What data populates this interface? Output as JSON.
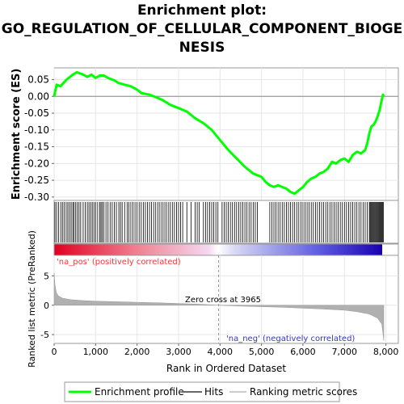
{
  "chart_data": {
    "type": "line",
    "title_lines": [
      "Enrichment plot:",
      "GO_REGULATION_OF_CELLULAR_COMPONENT_BIOGE",
      "NESIS"
    ],
    "es_panel": {
      "ylabel": "Enrichment score (ES)",
      "ylim": [
        -0.31,
        0.085
      ],
      "yticks": [
        0.05,
        0.0,
        -0.05,
        -0.1,
        -0.15,
        -0.2,
        -0.25,
        -0.3
      ],
      "ytick_labels": [
        "0.05",
        "0.00",
        "-0.05",
        "-0.10",
        "-0.15",
        "-0.20",
        "-0.25",
        "-0.30"
      ],
      "series": [
        {
          "name": "Enrichment profile",
          "color": "#00ff00",
          "points": [
            [
              0,
              0.0
            ],
            [
              60,
              0.035
            ],
            [
              150,
              0.03
            ],
            [
              300,
              0.05
            ],
            [
              450,
              0.065
            ],
            [
              550,
              0.072
            ],
            [
              700,
              0.065
            ],
            [
              800,
              0.058
            ],
            [
              900,
              0.065
            ],
            [
              1000,
              0.055
            ],
            [
              1100,
              0.062
            ],
            [
              1200,
              0.062
            ],
            [
              1300,
              0.055
            ],
            [
              1450,
              0.048
            ],
            [
              1550,
              0.04
            ],
            [
              1700,
              0.035
            ],
            [
              1850,
              0.03
            ],
            [
              2000,
              0.02
            ],
            [
              2100,
              0.01
            ],
            [
              2300,
              0.005
            ],
            [
              2450,
              -0.002
            ],
            [
              2600,
              -0.01
            ],
            [
              2800,
              -0.025
            ],
            [
              3000,
              -0.035
            ],
            [
              3200,
              -0.045
            ],
            [
              3400,
              -0.065
            ],
            [
              3600,
              -0.08
            ],
            [
              3800,
              -0.1
            ],
            [
              4000,
              -0.13
            ],
            [
              4200,
              -0.16
            ],
            [
              4400,
              -0.185
            ],
            [
              4600,
              -0.21
            ],
            [
              4800,
              -0.23
            ],
            [
              5000,
              -0.24
            ],
            [
              5100,
              -0.255
            ],
            [
              5200,
              -0.265
            ],
            [
              5300,
              -0.27
            ],
            [
              5400,
              -0.265
            ],
            [
              5500,
              -0.27
            ],
            [
              5600,
              -0.275
            ],
            [
              5700,
              -0.285
            ],
            [
              5800,
              -0.29
            ],
            [
              5900,
              -0.28
            ],
            [
              6000,
              -0.27
            ],
            [
              6100,
              -0.255
            ],
            [
              6200,
              -0.245
            ],
            [
              6300,
              -0.24
            ],
            [
              6400,
              -0.23
            ],
            [
              6500,
              -0.225
            ],
            [
              6600,
              -0.215
            ],
            [
              6700,
              -0.195
            ],
            [
              6800,
              -0.2
            ],
            [
              6900,
              -0.19
            ],
            [
              7000,
              -0.185
            ],
            [
              7100,
              -0.195
            ],
            [
              7200,
              -0.175
            ],
            [
              7300,
              -0.165
            ],
            [
              7400,
              -0.17
            ],
            [
              7500,
              -0.16
            ],
            [
              7550,
              -0.14
            ],
            [
              7600,
              -0.11
            ],
            [
              7650,
              -0.09
            ],
            [
              7700,
              -0.085
            ],
            [
              7750,
              -0.075
            ],
            [
              7800,
              -0.06
            ],
            [
              7850,
              -0.04
            ],
            [
              7900,
              -0.01
            ],
            [
              7930,
              0.005
            ],
            [
              7950,
              0.0
            ]
          ]
        }
      ]
    },
    "hits": {
      "name": "Hits",
      "positions": [
        20,
        60,
        110,
        160,
        200,
        240,
        290,
        330,
        370,
        410,
        450,
        480,
        520,
        560,
        600,
        640,
        700,
        750,
        800,
        840,
        880,
        920,
        960,
        1000,
        1050,
        1100,
        1130,
        1160,
        1200,
        1250,
        1300,
        1350,
        1400,
        1450,
        1500,
        1560,
        1600,
        1640,
        1700,
        1760,
        1800,
        1850,
        1900,
        1950,
        2000,
        2050,
        2100,
        2150,
        2200,
        2250,
        2300,
        2350,
        2400,
        2450,
        2500,
        2550,
        2600,
        2650,
        2700,
        2750,
        2800,
        2850,
        2900,
        2950,
        3000,
        3050,
        3100,
        3200,
        3300,
        3400,
        3450,
        3500,
        3600,
        3650,
        3700,
        3750,
        3800,
        3850,
        3900,
        3950,
        4050,
        4100,
        4150,
        4200,
        4250,
        4300,
        4350,
        4400,
        4450,
        4500,
        4550,
        4600,
        4650,
        4700,
        4750,
        4800,
        4850,
        4900,
        5200,
        5250,
        5300,
        5350,
        5400,
        5450,
        5500,
        5550,
        5600,
        5650,
        5700,
        5750,
        5800,
        5850,
        5900,
        5950,
        6000,
        6050,
        6100,
        6150,
        6200,
        6250,
        6300,
        6350,
        6400,
        6450,
        6500,
        6550,
        6600,
        6650,
        6700,
        6750,
        6800,
        6850,
        6900,
        6950,
        7000,
        7050,
        7100,
        7150,
        7200,
        7250,
        7300,
        7350,
        7400,
        7450,
        7500,
        7550,
        7600,
        7620,
        7640,
        7660,
        7680,
        7700,
        7720,
        7740,
        7760,
        7780,
        7800,
        7820,
        7840,
        7860,
        7880,
        7900,
        7920,
        7940
      ]
    },
    "ranked_panel": {
      "name": "Ranking metric scores",
      "ylabel": "Ranked list metric (PreRanked)",
      "xlabel": "Rank in Ordered Dataset",
      "ylim": [
        -6.5,
        8.5
      ],
      "yticks": [
        5,
        0,
        -5
      ],
      "ytick_labels": [
        "5",
        "0",
        "-5"
      ],
      "xlim": [
        0,
        8300
      ],
      "xticks": [
        0,
        1000,
        2000,
        3000,
        4000,
        5000,
        6000,
        7000,
        8000
      ],
      "xtick_labels": [
        "0",
        "1,000",
        "2,000",
        "3,000",
        "4,000",
        "5,000",
        "6,000",
        "7,000",
        "8,000"
      ],
      "zero_cross": 3965,
      "zero_cross_label": "Zero cross at 3965",
      "pos_label": "'na_pos' (positively correlated)",
      "neg_label": "'na_neg' (negatively correlated)",
      "metric_curve": [
        [
          0,
          5.5
        ],
        [
          20,
          3.5
        ],
        [
          50,
          2.2
        ],
        [
          100,
          1.6
        ],
        [
          200,
          1.2
        ],
        [
          400,
          0.95
        ],
        [
          700,
          0.8
        ],
        [
          1000,
          0.7
        ],
        [
          1500,
          0.6
        ],
        [
          2000,
          0.5
        ],
        [
          2500,
          0.42
        ],
        [
          3000,
          0.3
        ],
        [
          3500,
          0.18
        ],
        [
          3965,
          0.0
        ],
        [
          4500,
          -0.15
        ],
        [
          5000,
          -0.25
        ],
        [
          5500,
          -0.35
        ],
        [
          6000,
          -0.5
        ],
        [
          6500,
          -0.65
        ],
        [
          7000,
          -0.85
        ],
        [
          7300,
          -1.1
        ],
        [
          7600,
          -1.5
        ],
        [
          7800,
          -2.2
        ],
        [
          7900,
          -3.2
        ],
        [
          7950,
          -6.0
        ]
      ]
    },
    "legend": [
      {
        "name": "Enrichment profile",
        "color": "#00ff00"
      },
      {
        "name": "Hits",
        "color": "#666666"
      },
      {
        "name": "Ranking metric scores",
        "color": "#cccccc"
      }
    ],
    "colors": {
      "pos_label_color": "#ff3333",
      "neg_label_color": "#3333cc",
      "ranked_fill": "#b0b0b0"
    }
  }
}
